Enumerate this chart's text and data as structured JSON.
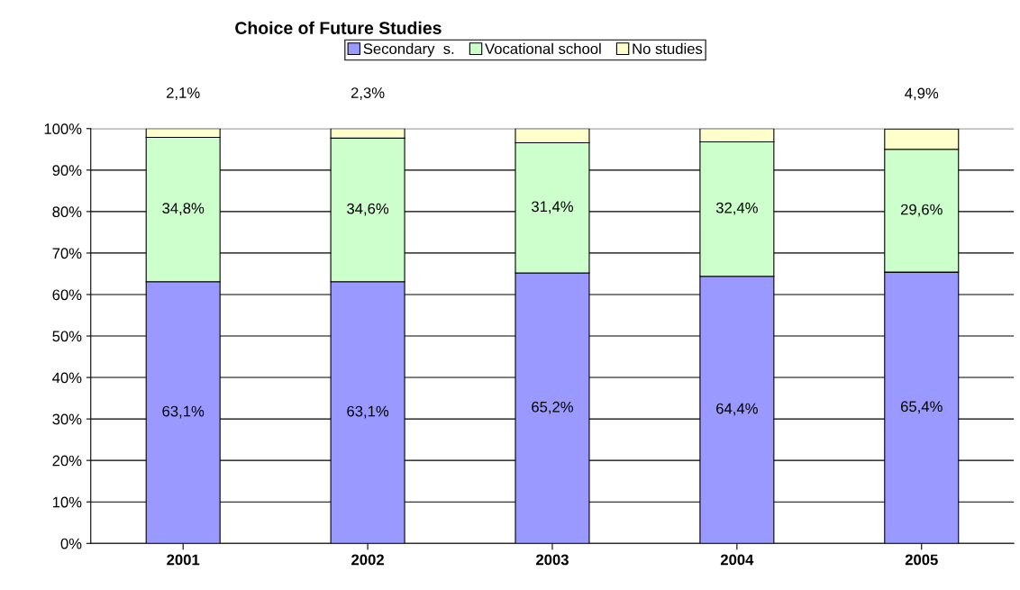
{
  "chart_data": {
    "type": "bar",
    "title": "Choice of Future Studies",
    "stacked": true,
    "categories": [
      "2001",
      "2002",
      "2003",
      "2004",
      "2005"
    ],
    "series": [
      {
        "name": "Secondary  s.",
        "color": "#9999ff",
        "values": [
          63.1,
          63.1,
          65.2,
          64.4,
          65.4
        ],
        "value_labels": [
          "63,1%",
          "63,1%",
          "65,2%",
          "64,4%",
          "65,4%"
        ]
      },
      {
        "name": "Vocational school",
        "color": "#ccffcc",
        "values": [
          34.8,
          34.6,
          31.4,
          32.4,
          29.6
        ],
        "value_labels": [
          "34,8%",
          "34,6%",
          "31,4%",
          "32,4%",
          "29,6%"
        ]
      },
      {
        "name": "No studies",
        "color": "#ffffcc",
        "values": [
          2.1,
          2.3,
          3.4,
          3.2,
          4.9
        ],
        "value_labels": [
          "2,1%",
          "2,3%",
          null,
          null,
          "4,9%"
        ]
      }
    ],
    "ylim": [
      0,
      100
    ],
    "yticks": [
      {
        "value": 0,
        "label": "0%"
      },
      {
        "value": 10,
        "label": "10%"
      },
      {
        "value": 20,
        "label": "20%"
      },
      {
        "value": 30,
        "label": "30%"
      },
      {
        "value": 40,
        "label": "40%"
      },
      {
        "value": 50,
        "label": "50%"
      },
      {
        "value": 60,
        "label": "60%"
      },
      {
        "value": 70,
        "label": "70%"
      },
      {
        "value": 80,
        "label": "80%"
      },
      {
        "value": 90,
        "label": "90%"
      },
      {
        "value": 100,
        "label": "100%"
      }
    ],
    "grid": "y",
    "legend": "top"
  }
}
